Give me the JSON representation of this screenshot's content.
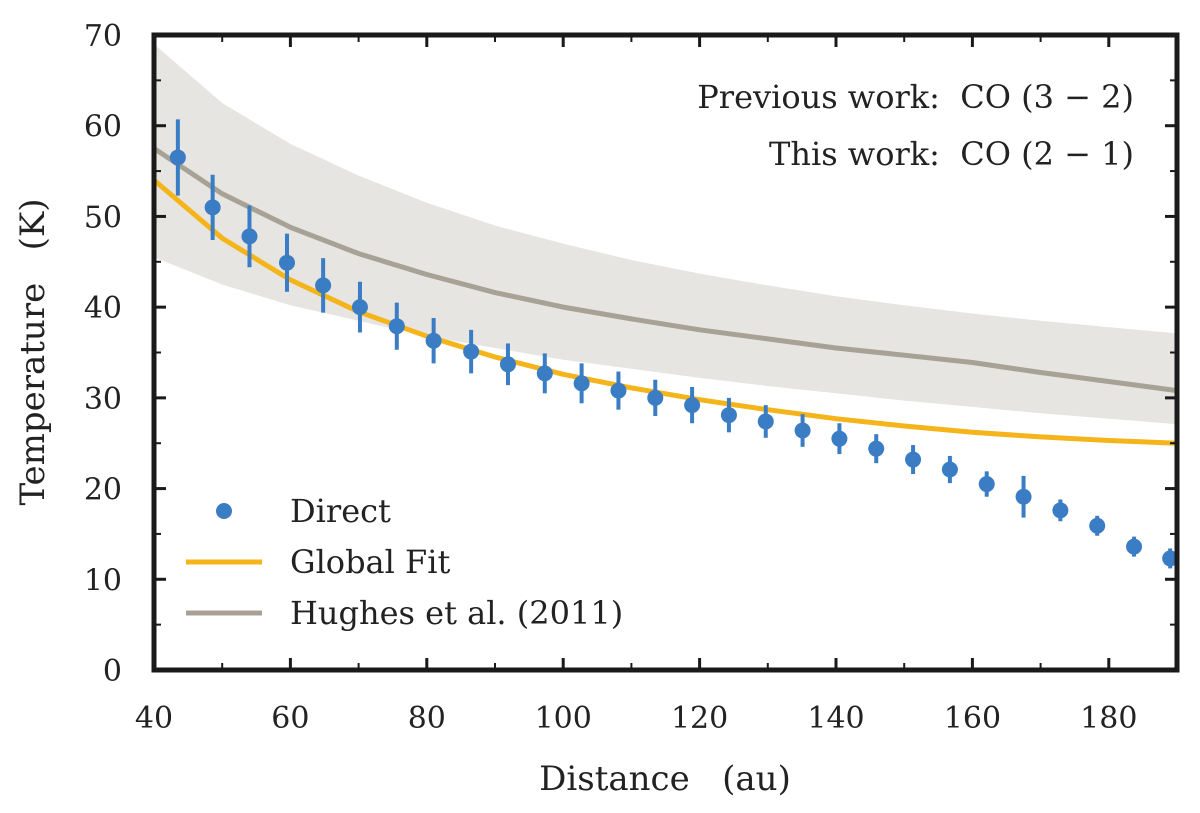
{
  "chart_data": {
    "type": "scatter",
    "xlabel": "Distance   (au)",
    "ylabel": "Temperature   (K)",
    "xlim": [
      40,
      190
    ],
    "ylim": [
      0,
      70
    ],
    "x_ticks": [
      40,
      60,
      80,
      100,
      120,
      140,
      160,
      180
    ],
    "y_ticks": [
      0,
      10,
      20,
      30,
      40,
      50,
      60,
      70
    ],
    "annotations": [
      "Previous work:  CO (3 − 2)",
      "This work:  CO (2 − 1)"
    ],
    "legend_position": "bottom-left",
    "series": [
      {
        "name": "Direct",
        "kind": "points_with_errorbars",
        "color": "#3a7dc4",
        "x": [
          43.5,
          48.6,
          54.0,
          59.5,
          64.8,
          70.2,
          75.6,
          81.0,
          86.5,
          91.9,
          97.3,
          102.7,
          108.1,
          113.5,
          118.9,
          124.3,
          129.7,
          135.1,
          140.5,
          145.9,
          151.3,
          156.7,
          162.1,
          167.5,
          172.9,
          178.3,
          183.7,
          189.0
        ],
        "y": [
          56.5,
          51.0,
          47.8,
          44.9,
          42.4,
          40.0,
          37.9,
          36.3,
          35.1,
          33.7,
          32.7,
          31.6,
          30.8,
          30.0,
          29.2,
          28.1,
          27.4,
          26.4,
          25.5,
          24.4,
          23.2,
          22.1,
          20.5,
          19.1,
          17.6,
          15.9,
          13.6,
          12.3
        ],
        "yerr": [
          4.2,
          3.6,
          3.4,
          3.2,
          3.0,
          2.8,
          2.6,
          2.5,
          2.4,
          2.3,
          2.2,
          2.2,
          2.1,
          2.0,
          2.0,
          1.9,
          1.8,
          1.8,
          1.7,
          1.6,
          1.6,
          1.5,
          1.4,
          2.3,
          1.2,
          1.1,
          1.1,
          1.1
        ]
      },
      {
        "name": "Global Fit",
        "kind": "line",
        "color": "#f4b41a",
        "x": [
          40,
          50,
          60,
          70,
          80,
          90,
          100,
          110,
          120,
          130,
          140,
          150,
          160,
          170,
          180,
          190
        ],
        "y": [
          54.0,
          47.6,
          43.0,
          39.5,
          36.8,
          34.5,
          32.6,
          31.1,
          29.8,
          28.7,
          27.7,
          26.9,
          26.2,
          25.7,
          25.3,
          25.0
        ]
      },
      {
        "name": "Hughes et al. (2011)",
        "kind": "line_with_band",
        "color": "#a8a196",
        "band_color": "#e6e5e1",
        "x": [
          40,
          50,
          60,
          70,
          80,
          90,
          100,
          110,
          120,
          130,
          140,
          150,
          160,
          170,
          180,
          190
        ],
        "y": [
          57.5,
          52.5,
          48.8,
          45.9,
          43.6,
          41.6,
          40.0,
          38.7,
          37.5,
          36.5,
          35.5,
          34.7,
          33.9,
          32.8,
          31.8,
          30.8
        ],
        "y_upper": [
          69.0,
          62.5,
          58.0,
          54.5,
          51.5,
          49.0,
          47.0,
          45.2,
          43.7,
          42.4,
          41.2,
          40.2,
          39.3,
          38.5,
          37.8,
          37.1
        ],
        "y_lower": [
          45.5,
          42.5,
          40.2,
          38.5,
          36.8,
          35.5,
          34.2,
          33.2,
          32.2,
          31.3,
          30.5,
          29.7,
          29.0,
          28.3,
          27.7,
          27.1
        ]
      }
    ]
  }
}
